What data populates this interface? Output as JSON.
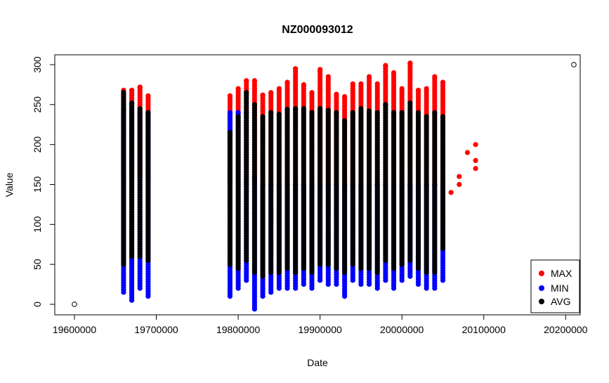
{
  "chart_data": {
    "type": "scatter",
    "title": "NZ000093012",
    "xlabel": "Date",
    "ylabel": "Value",
    "xlim": [
      19600000,
      20210000
    ],
    "ylim": [
      0,
      300
    ],
    "x_ticks": [
      19600000,
      19700000,
      19800000,
      19900000,
      20000000,
      20100000,
      20200000
    ],
    "x_tick_labels": [
      "19600000",
      "19700000",
      "19800000",
      "19900000",
      "20000000",
      "20100000",
      "20200000"
    ],
    "y_ticks": [
      0,
      50,
      100,
      150,
      200,
      250,
      300
    ],
    "y_tick_labels": [
      "0",
      "50",
      "100",
      "150",
      "200",
      "250",
      "300"
    ],
    "grid": false,
    "legend_position": "bottom-right",
    "reference_points": [
      {
        "x": 19600000,
        "y": 0
      },
      {
        "x": 20210000,
        "y": 300
      }
    ],
    "series": [
      {
        "name": "MAX",
        "color": "#ff0000",
        "columns": [
          {
            "x": 19660000,
            "ymin": 160,
            "ymax": 268
          },
          {
            "x": 19670000,
            "ymin": 160,
            "ymax": 268
          },
          {
            "x": 19680000,
            "ymin": 160,
            "ymax": 272
          },
          {
            "x": 19690000,
            "ymin": 160,
            "ymax": 261
          },
          {
            "x": 19790000,
            "ymin": 150,
            "ymax": 261
          },
          {
            "x": 19800000,
            "ymin": 150,
            "ymax": 270
          },
          {
            "x": 19810000,
            "ymin": 150,
            "ymax": 280
          },
          {
            "x": 19820000,
            "ymin": 150,
            "ymax": 280
          },
          {
            "x": 19830000,
            "ymin": 150,
            "ymax": 262
          },
          {
            "x": 19840000,
            "ymin": 150,
            "ymax": 265
          },
          {
            "x": 19850000,
            "ymin": 150,
            "ymax": 270
          },
          {
            "x": 19860000,
            "ymin": 150,
            "ymax": 278
          },
          {
            "x": 19870000,
            "ymin": 150,
            "ymax": 295
          },
          {
            "x": 19880000,
            "ymin": 150,
            "ymax": 275
          },
          {
            "x": 19890000,
            "ymin": 150,
            "ymax": 265
          },
          {
            "x": 19900000,
            "ymin": 150,
            "ymax": 294
          },
          {
            "x": 19910000,
            "ymin": 150,
            "ymax": 285
          },
          {
            "x": 19920000,
            "ymin": 150,
            "ymax": 263
          },
          {
            "x": 19930000,
            "ymin": 150,
            "ymax": 260
          },
          {
            "x": 19940000,
            "ymin": 150,
            "ymax": 276
          },
          {
            "x": 19950000,
            "ymin": 150,
            "ymax": 276
          },
          {
            "x": 19960000,
            "ymin": 150,
            "ymax": 285
          },
          {
            "x": 19970000,
            "ymin": 150,
            "ymax": 276
          },
          {
            "x": 19980000,
            "ymin": 150,
            "ymax": 299
          },
          {
            "x": 19990000,
            "ymin": 150,
            "ymax": 290
          },
          {
            "x": 20000000,
            "ymin": 150,
            "ymax": 270
          },
          {
            "x": 20010000,
            "ymin": 150,
            "ymax": 302
          },
          {
            "x": 20020000,
            "ymin": 150,
            "ymax": 268
          },
          {
            "x": 20030000,
            "ymin": 150,
            "ymax": 270
          },
          {
            "x": 20040000,
            "ymin": 150,
            "ymax": 285
          },
          {
            "x": 20050000,
            "ymin": 150,
            "ymax": 278
          }
        ],
        "points": [
          {
            "x": 20060000,
            "y": 140
          },
          {
            "x": 20070000,
            "y": 150
          },
          {
            "x": 20070000,
            "y": 160
          },
          {
            "x": 20080000,
            "y": 190
          },
          {
            "x": 20090000,
            "y": 170
          },
          {
            "x": 20090000,
            "y": 180
          },
          {
            "x": 20090000,
            "y": 200
          }
        ]
      },
      {
        "name": "MIN",
        "color": "#0000ff",
        "columns": [
          {
            "x": 19660000,
            "ymin": 15,
            "ymax": 245
          },
          {
            "x": 19670000,
            "ymin": 5,
            "ymax": 245
          },
          {
            "x": 19680000,
            "ymin": 20,
            "ymax": 240
          },
          {
            "x": 19690000,
            "ymin": 10,
            "ymax": 240
          },
          {
            "x": 19790000,
            "ymin": 10,
            "ymax": 240
          },
          {
            "x": 19800000,
            "ymin": 20,
            "ymax": 240
          },
          {
            "x": 19810000,
            "ymin": 30,
            "ymax": 240
          },
          {
            "x": 19820000,
            "ymin": -6,
            "ymax": 160
          },
          {
            "x": 19830000,
            "ymin": 10,
            "ymax": 150
          },
          {
            "x": 19840000,
            "ymin": 15,
            "ymax": 150
          },
          {
            "x": 19850000,
            "ymin": 20,
            "ymax": 150
          },
          {
            "x": 19860000,
            "ymin": 20,
            "ymax": 150
          },
          {
            "x": 19870000,
            "ymin": 20,
            "ymax": 150
          },
          {
            "x": 19880000,
            "ymin": 25,
            "ymax": 150
          },
          {
            "x": 19890000,
            "ymin": 20,
            "ymax": 150
          },
          {
            "x": 19900000,
            "ymin": 30,
            "ymax": 150
          },
          {
            "x": 19910000,
            "ymin": 25,
            "ymax": 150
          },
          {
            "x": 19920000,
            "ymin": 25,
            "ymax": 150
          },
          {
            "x": 19930000,
            "ymin": 10,
            "ymax": 150
          },
          {
            "x": 19940000,
            "ymin": 30,
            "ymax": 150
          },
          {
            "x": 19950000,
            "ymin": 25,
            "ymax": 150
          },
          {
            "x": 19960000,
            "ymin": 25,
            "ymax": 150
          },
          {
            "x": 19970000,
            "ymin": 20,
            "ymax": 150
          },
          {
            "x": 19980000,
            "ymin": 30,
            "ymax": 150
          },
          {
            "x": 19990000,
            "ymin": 20,
            "ymax": 150
          },
          {
            "x": 20000000,
            "ymin": 30,
            "ymax": 150
          },
          {
            "x": 20010000,
            "ymin": 35,
            "ymax": 150
          },
          {
            "x": 20020000,
            "ymin": 25,
            "ymax": 150
          },
          {
            "x": 20030000,
            "ymin": 20,
            "ymax": 150
          },
          {
            "x": 20040000,
            "ymin": 20,
            "ymax": 150
          },
          {
            "x": 20050000,
            "ymin": 30,
            "ymax": 150
          }
        ]
      },
      {
        "name": "AVG",
        "color": "#000000",
        "columns": [
          {
            "x": 19660000,
            "ymin": 50,
            "ymax": 265
          },
          {
            "x": 19670000,
            "ymin": 60,
            "ymax": 252
          },
          {
            "x": 19680000,
            "ymin": 60,
            "ymax": 245
          },
          {
            "x": 19690000,
            "ymin": 55,
            "ymax": 240
          },
          {
            "x": 19790000,
            "ymin": 50,
            "ymax": 215
          },
          {
            "x": 19800000,
            "ymin": 45,
            "ymax": 235
          },
          {
            "x": 19810000,
            "ymin": 55,
            "ymax": 265
          },
          {
            "x": 19820000,
            "ymin": 40,
            "ymax": 250
          },
          {
            "x": 19830000,
            "ymin": 35,
            "ymax": 235
          },
          {
            "x": 19840000,
            "ymin": 40,
            "ymax": 240
          },
          {
            "x": 19850000,
            "ymin": 40,
            "ymax": 238
          },
          {
            "x": 19860000,
            "ymin": 45,
            "ymax": 244
          },
          {
            "x": 19870000,
            "ymin": 40,
            "ymax": 245
          },
          {
            "x": 19880000,
            "ymin": 45,
            "ymax": 245
          },
          {
            "x": 19890000,
            "ymin": 40,
            "ymax": 240
          },
          {
            "x": 19900000,
            "ymin": 50,
            "ymax": 245
          },
          {
            "x": 19910000,
            "ymin": 50,
            "ymax": 243
          },
          {
            "x": 19920000,
            "ymin": 45,
            "ymax": 240
          },
          {
            "x": 19930000,
            "ymin": 40,
            "ymax": 230
          },
          {
            "x": 19940000,
            "ymin": 50,
            "ymax": 240
          },
          {
            "x": 19950000,
            "ymin": 45,
            "ymax": 245
          },
          {
            "x": 19960000,
            "ymin": 45,
            "ymax": 242
          },
          {
            "x": 19970000,
            "ymin": 40,
            "ymax": 240
          },
          {
            "x": 19980000,
            "ymin": 55,
            "ymax": 250
          },
          {
            "x": 19990000,
            "ymin": 45,
            "ymax": 240
          },
          {
            "x": 20000000,
            "ymin": 50,
            "ymax": 240
          },
          {
            "x": 20010000,
            "ymin": 55,
            "ymax": 252
          },
          {
            "x": 20020000,
            "ymin": 45,
            "ymax": 240
          },
          {
            "x": 20030000,
            "ymin": 40,
            "ymax": 235
          },
          {
            "x": 20040000,
            "ymin": 40,
            "ymax": 240
          },
          {
            "x": 20050000,
            "ymin": 70,
            "ymax": 235
          }
        ]
      }
    ]
  }
}
